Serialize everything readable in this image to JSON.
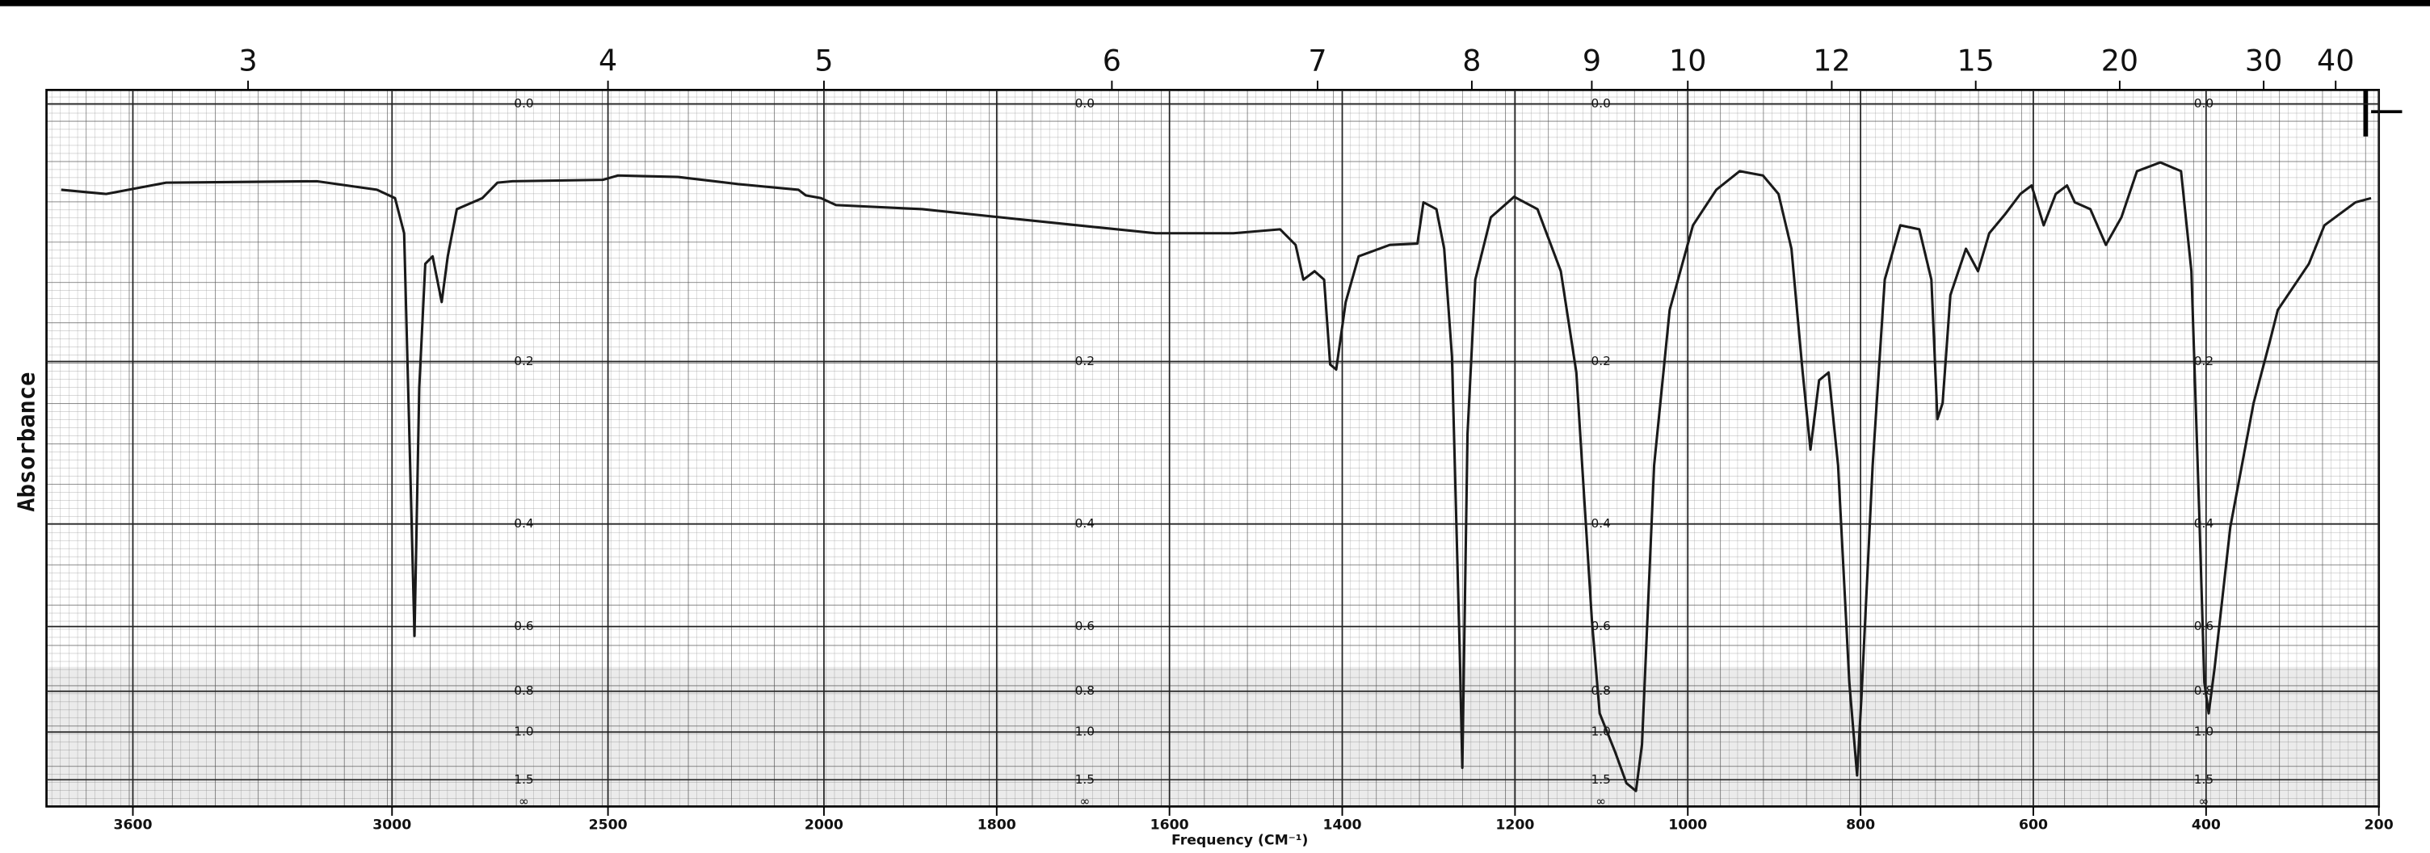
{
  "chart_data": {
    "type": "line",
    "y_label": "Absorbance",
    "x_label": "Frequency (CM⁻¹)",
    "color": "#1a1a1a",
    "grid": true,
    "xlim": [
      3800,
      200
    ],
    "x_scale_break": 2000,
    "xticks": [
      3600,
      3000,
      2500,
      2000,
      1800,
      1600,
      1400,
      1200,
      1000,
      800,
      600,
      400,
      200
    ],
    "top_xticks": [
      3,
      4,
      5,
      6,
      7,
      8,
      9,
      10,
      12,
      15,
      20,
      30,
      40
    ],
    "yticks": [
      {
        "value": 0,
        "label": "0.0"
      },
      0.2,
      0.4,
      0.6,
      0.8,
      {
        "value": 1,
        "label": "1.0"
      },
      1.5
    ],
    "y_bottom_label": "∞",
    "x": [
      3766,
      3662,
      3523,
      3174,
      3035,
      2993,
      2972,
      2958,
      2948,
      2937,
      2923,
      2906,
      2885,
      2871,
      2850,
      2791,
      2756,
      2721,
      2512,
      2477,
      2338,
      2199,
      2059,
      2042,
      2007,
      1986,
      1886,
      1796,
      1706,
      1616,
      1526,
      1472,
      1454,
      1445,
      1432,
      1421,
      1414,
      1407,
      1396,
      1381,
      1345,
      1313,
      1306,
      1291,
      1282,
      1273,
      1264,
      1261,
      1255,
      1246,
      1228,
      1201,
      1174,
      1147,
      1129,
      1111,
      1102,
      1084,
      1071,
      1060,
      1053,
      1039,
      1021,
      994,
      967,
      940,
      913,
      895,
      880,
      867,
      858,
      848,
      837,
      826,
      813,
      804,
      799,
      786,
      772,
      754,
      732,
      718,
      711,
      705,
      696,
      678,
      664,
      651,
      633,
      615,
      602,
      588,
      574,
      561,
      552,
      534,
      516,
      498,
      480,
      453,
      429,
      417,
      408,
      402,
      397,
      390,
      372,
      345,
      326,
      317,
      281,
      263,
      227,
      209
    ],
    "values": [
      0.057,
      0.06,
      0.052,
      0.051,
      0.057,
      0.063,
      0.089,
      0.317,
      0.624,
      0.227,
      0.113,
      0.107,
      0.145,
      0.107,
      0.071,
      0.063,
      0.052,
      0.051,
      0.05,
      0.047,
      0.048,
      0.053,
      0.057,
      0.061,
      0.063,
      0.068,
      0.071,
      0.077,
      0.083,
      0.089,
      0.089,
      0.086,
      0.098,
      0.126,
      0.119,
      0.126,
      0.203,
      0.208,
      0.145,
      0.107,
      0.098,
      0.097,
      0.066,
      0.071,
      0.101,
      0.195,
      0.666,
      1.311,
      0.278,
      0.126,
      0.077,
      0.062,
      0.071,
      0.119,
      0.211,
      0.585,
      0.897,
      1.148,
      1.574,
      1.806,
      1.085,
      0.317,
      0.152,
      0.083,
      0.057,
      0.044,
      0.047,
      0.06,
      0.101,
      0.211,
      0.297,
      0.219,
      0.211,
      0.317,
      0.767,
      1.423,
      0.827,
      0.317,
      0.126,
      0.083,
      0.086,
      0.126,
      0.261,
      0.243,
      0.139,
      0.101,
      0.119,
      0.089,
      0.075,
      0.06,
      0.054,
      0.083,
      0.06,
      0.054,
      0.066,
      0.071,
      0.098,
      0.077,
      0.044,
      0.038,
      0.044,
      0.119,
      0.381,
      0.767,
      0.897,
      0.714,
      0.405,
      0.243,
      0.18,
      0.152,
      0.113,
      0.083,
      0.066,
      0.063
    ]
  }
}
